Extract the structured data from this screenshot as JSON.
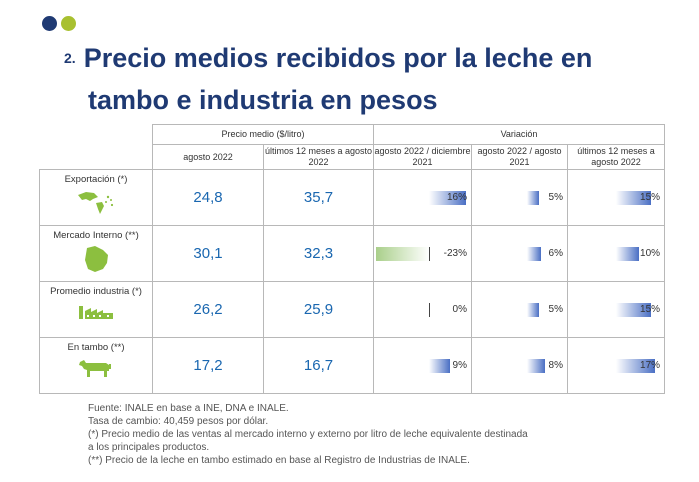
{
  "colors": {
    "dot1": "#1f3a73",
    "dot2": "#a8c030",
    "title": "#1f3a73",
    "value": "#1a67b0",
    "bar_pos": "#4a6fc4",
    "bar_neg": "#a9cf8a"
  },
  "title": {
    "number": "2.",
    "line1": "Precio medios recibidos por la leche en",
    "line2": "tambo e industria en pesos"
  },
  "table": {
    "group_price": "Precio medio ($/litro)",
    "group_variation": "Variación",
    "columns": [
      "agosto 2022",
      "últimos 12 meses a agosto 2022",
      "agosto 2022 / diciembre 2021",
      "agosto 2022 / agosto 2021",
      "últimos 12 meses a agosto 2022"
    ],
    "rows": [
      {
        "label": "Exportación (*)",
        "icon": "world-map-americas-icon",
        "precio_agosto": "24,8",
        "precio_12m": "35,7",
        "var": [
          16,
          5,
          15
        ],
        "var_labels": [
          "16%",
          "5%",
          "15%"
        ]
      },
      {
        "label": "Mercado Interno (**)",
        "icon": "uruguay-map-icon",
        "precio_agosto": "30,1",
        "precio_12m": "32,3",
        "var": [
          -23,
          6,
          10
        ],
        "var_labels": [
          "-23%",
          "6%",
          "10%"
        ]
      },
      {
        "label": "Promedio industria (*)",
        "icon": "factory-icon",
        "precio_agosto": "26,2",
        "precio_12m": "25,9",
        "var": [
          0,
          5,
          15
        ],
        "var_labels": [
          "0%",
          "5%",
          "15%"
        ]
      },
      {
        "label": "En tambo (**)",
        "icon": "cow-icon",
        "precio_agosto": "17,2",
        "precio_12m": "16,7",
        "var": [
          9,
          8,
          17
        ],
        "var_labels": [
          "9%",
          "8%",
          "17%"
        ]
      }
    ]
  },
  "notes": [
    "Fuente: INALE en base a INE, DNA e INALE.",
    "Tasa de cambio: 40,459 pesos por dólar.",
    "(*) Precio medio de las ventas al mercado interno y externo por litro de leche equivalente destinada",
    "a los principales productos.",
    "(**) Precio de la leche en tambo estimado en base al Registro de Industrias de INALE."
  ]
}
